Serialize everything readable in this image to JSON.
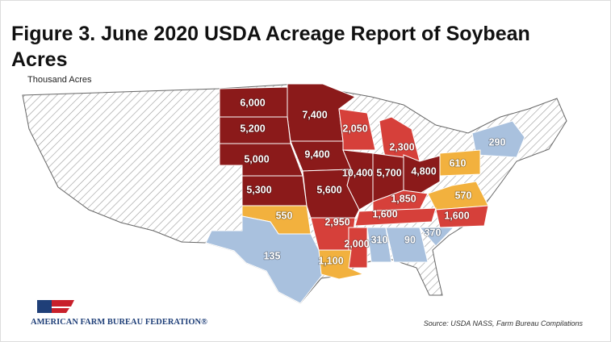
{
  "title": "Figure 3. June 2020 USDA Acreage Report of Soybean Acres",
  "unit_label": "Thousand Acres",
  "regions": [
    {
      "label": "6,000",
      "color": "#8b1a1a"
    },
    {
      "label": "7,400",
      "color": "#8b1a1a"
    },
    {
      "label": "5,200",
      "color": "#8b1a1a"
    },
    {
      "label": "2,050",
      "color": "#d6403a"
    },
    {
      "label": "2,300",
      "color": "#d6403a"
    },
    {
      "label": "290",
      "color": "#a9c1de"
    },
    {
      "label": "5,000",
      "color": "#8b1a1a"
    },
    {
      "label": "9,400",
      "color": "#8b1a1a"
    },
    {
      "label": "10,400",
      "color": "#8b1a1a"
    },
    {
      "label": "5,700",
      "color": "#8b1a1a"
    },
    {
      "label": "4,800",
      "color": "#8b1a1a"
    },
    {
      "label": "610",
      "color": "#f2b13e"
    },
    {
      "label": "5,300",
      "color": "#8b1a1a"
    },
    {
      "label": "5,600",
      "color": "#8b1a1a"
    },
    {
      "label": "1,850",
      "color": "#d6403a"
    },
    {
      "label": "570",
      "color": "#f2b13e"
    },
    {
      "label": "550",
      "color": "#f2b13e"
    },
    {
      "label": "2,950",
      "color": "#d6403a"
    },
    {
      "label": "1,600",
      "color": "#d6403a"
    },
    {
      "label": "1,600",
      "color": "#d6403a"
    },
    {
      "label": "370",
      "color": "#a9c1de"
    },
    {
      "label": "135",
      "color": "#a9c1de"
    },
    {
      "label": "2,000",
      "color": "#d6403a"
    },
    {
      "label": "310",
      "color": "#a9c1de"
    },
    {
      "label": "90",
      "color": "#a9c1de"
    },
    {
      "label": "1,100",
      "color": "#f2b13e"
    }
  ],
  "logo_text": "AMERICAN FARM BUREAU FEDERATION®",
  "source": "Source: USDA NASS, Farm Bureau Compilations"
}
